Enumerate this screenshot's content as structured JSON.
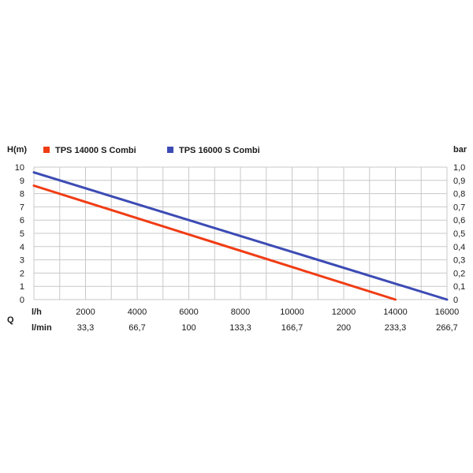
{
  "chart_data": {
    "type": "line",
    "left_axis_label": "H(m)",
    "right_axis_label": "bar",
    "left_ticks": [
      "0",
      "1",
      "2",
      "3",
      "4",
      "5",
      "6",
      "7",
      "8",
      "9",
      "10"
    ],
    "right_ticks": [
      "0",
      "0,1",
      "0,2",
      "0,3",
      "0,4",
      "0,5",
      "0,6",
      "0,7",
      "0,8",
      "0,9",
      "1,0"
    ],
    "ylim": [
      0,
      10
    ],
    "xlim": [
      0,
      16000
    ],
    "q_label": "Q",
    "x_row1_unit": "l/h",
    "x_row1_ticks": [
      "2000",
      "4000",
      "6000",
      "8000",
      "10000",
      "12000",
      "14000",
      "16000"
    ],
    "x_row2_unit": "l/min",
    "x_row2_ticks": [
      "33,3",
      "66,7",
      "100",
      "133,3",
      "166,7",
      "200",
      "233,3",
      "266,7"
    ],
    "grid": true,
    "legend_position": "top",
    "series": [
      {
        "name": "TPS 14000 S Combi",
        "color": "#f03c14",
        "x": [
          0,
          14000
        ],
        "y": [
          8.6,
          0
        ]
      },
      {
        "name": "TPS 16000 S Combi",
        "color": "#3c4bb4",
        "x": [
          0,
          16000
        ],
        "y": [
          9.6,
          0
        ]
      }
    ]
  }
}
